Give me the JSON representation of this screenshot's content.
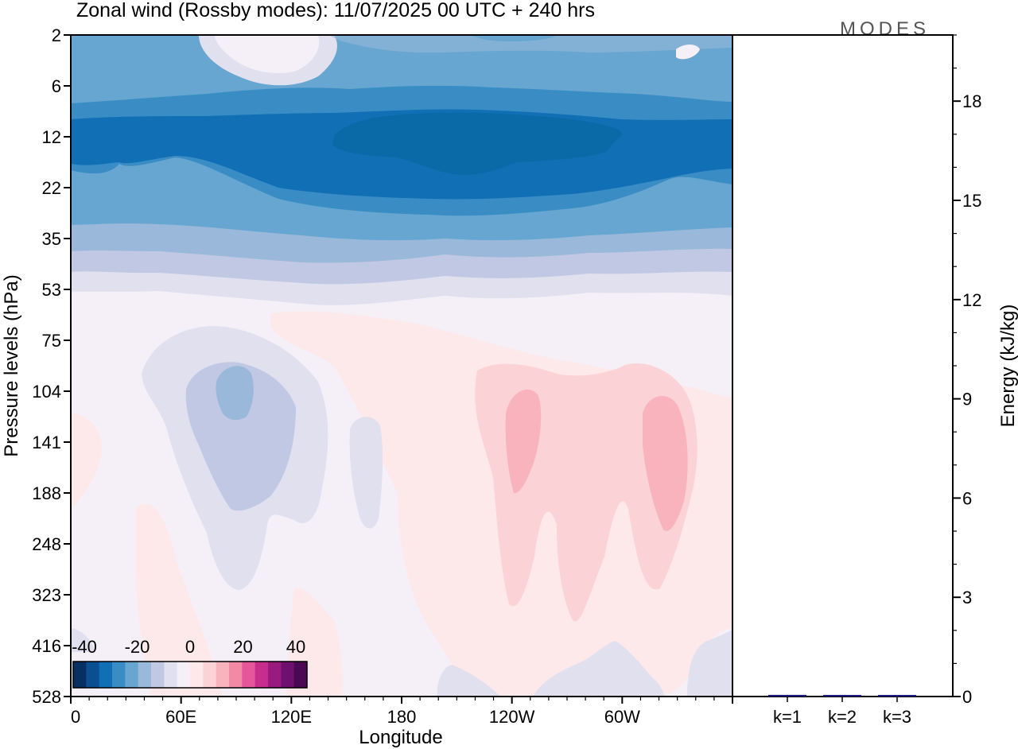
{
  "chart_data": {
    "type": "heatmap",
    "title": "Zonal wind (Rossby modes):  11/07/2025  00 UTC  + 240 hrs",
    "logo": "MODES",
    "xlabel": "Longitude",
    "ylabel": "Pressure levels (hPa)",
    "x_tick_labels": [
      "0",
      "60E",
      "120E",
      "180",
      "120W",
      "60W"
    ],
    "x_tick_degrees": [
      0,
      60,
      120,
      180,
      240,
      300
    ],
    "x_range": [
      0,
      360
    ],
    "y_tick_labels": [
      "2",
      "6",
      "12",
      "22",
      "35",
      "53",
      "75",
      "104",
      "141",
      "188",
      "248",
      "323",
      "416",
      "528"
    ],
    "y_scale": "pressure levels (top 2 hPa, bottom 528 hPa)",
    "colorbar": {
      "tick_labels": [
        "-40",
        "-20",
        "0",
        "20",
        "40"
      ],
      "colors": [
        "#053061",
        "#0a4f8f",
        "#1170b5",
        "#3a8dc4",
        "#66a6d0",
        "#9ab8d9",
        "#c1c8e3",
        "#e0e0ef",
        "#f5f0f7",
        "#fde8ea",
        "#fbd2d6",
        "#f8b3bd",
        "#f28aa5",
        "#e5579a",
        "#c62d8c",
        "#981b7d",
        "#6e1070",
        "#4b0955"
      ]
    },
    "energy_panel": {
      "ylabel": "Energy (kJ/kg)",
      "ylim": [
        0,
        20
      ],
      "y_tick_labels": [
        "0",
        "3",
        "6",
        "9",
        "12",
        "15",
        "18"
      ],
      "categories": [
        "k=1",
        "k=2",
        "k=3"
      ],
      "values": [
        0.05,
        0.02,
        0.01
      ],
      "bar_color": "#1a1a80"
    }
  }
}
